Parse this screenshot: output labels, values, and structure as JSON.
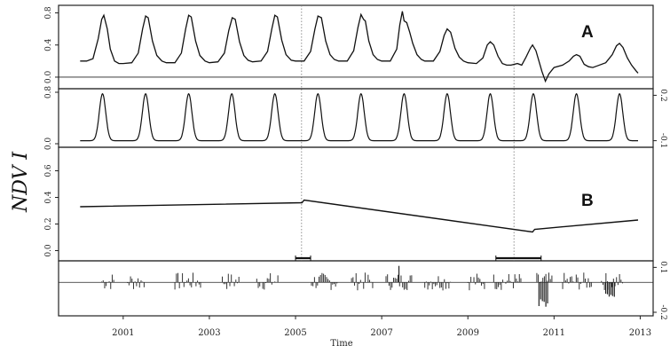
{
  "chart_data": {
    "type": "line",
    "ylabel": "NDV I",
    "xlabel": "Time",
    "x_tick_labels": [
      "2001",
      "2003",
      "2005",
      "2007",
      "2009",
      "2011",
      "2013"
    ],
    "x_tick_years": [
      2001,
      2003,
      2005,
      2007,
      2009,
      2011,
      2013
    ],
    "xlim": [
      1999.5,
      2013.3
    ],
    "panels": [
      {
        "label": "A",
        "kind": "observed",
        "ylim": [
          -0.1,
          0.85
        ],
        "y_ticks": [
          "0.0",
          "0.4",
          "0.8"
        ],
        "y_tick_values": [
          0.0,
          0.4,
          0.8
        ],
        "tick_side": "left",
        "points": [
          [
            2000.0,
            0.2
          ],
          [
            2000.15,
            0.2
          ],
          [
            2000.3,
            0.23
          ],
          [
            2000.42,
            0.48
          ],
          [
            2000.5,
            0.72
          ],
          [
            2000.55,
            0.77
          ],
          [
            2000.63,
            0.6
          ],
          [
            2000.7,
            0.35
          ],
          [
            2000.8,
            0.2
          ],
          [
            2000.9,
            0.17
          ],
          [
            2001.0,
            0.17
          ],
          [
            2001.2,
            0.18
          ],
          [
            2001.35,
            0.3
          ],
          [
            2001.45,
            0.6
          ],
          [
            2001.52,
            0.76
          ],
          [
            2001.58,
            0.74
          ],
          [
            2001.68,
            0.45
          ],
          [
            2001.78,
            0.27
          ],
          [
            2001.9,
            0.2
          ],
          [
            2002.0,
            0.18
          ],
          [
            2002.2,
            0.18
          ],
          [
            2002.35,
            0.3
          ],
          [
            2002.45,
            0.6
          ],
          [
            2002.52,
            0.77
          ],
          [
            2002.58,
            0.75
          ],
          [
            2002.68,
            0.45
          ],
          [
            2002.78,
            0.27
          ],
          [
            2002.9,
            0.2
          ],
          [
            2003.0,
            0.18
          ],
          [
            2003.2,
            0.19
          ],
          [
            2003.35,
            0.3
          ],
          [
            2003.45,
            0.58
          ],
          [
            2003.53,
            0.74
          ],
          [
            2003.6,
            0.72
          ],
          [
            2003.7,
            0.44
          ],
          [
            2003.8,
            0.27
          ],
          [
            2003.9,
            0.21
          ],
          [
            2004.0,
            0.19
          ],
          [
            2004.2,
            0.2
          ],
          [
            2004.35,
            0.32
          ],
          [
            2004.45,
            0.6
          ],
          [
            2004.52,
            0.77
          ],
          [
            2004.58,
            0.75
          ],
          [
            2004.68,
            0.46
          ],
          [
            2004.78,
            0.28
          ],
          [
            2004.9,
            0.21
          ],
          [
            2005.0,
            0.2
          ],
          [
            2005.2,
            0.2
          ],
          [
            2005.35,
            0.32
          ],
          [
            2005.45,
            0.6
          ],
          [
            2005.52,
            0.76
          ],
          [
            2005.6,
            0.74
          ],
          [
            2005.7,
            0.45
          ],
          [
            2005.8,
            0.28
          ],
          [
            2005.9,
            0.22
          ],
          [
            2006.0,
            0.2
          ],
          [
            2006.2,
            0.2
          ],
          [
            2006.35,
            0.33
          ],
          [
            2006.45,
            0.62
          ],
          [
            2006.52,
            0.78
          ],
          [
            2006.58,
            0.72
          ],
          [
            2006.62,
            0.7
          ],
          [
            2006.7,
            0.45
          ],
          [
            2006.8,
            0.28
          ],
          [
            2006.9,
            0.22
          ],
          [
            2007.0,
            0.2
          ],
          [
            2007.2,
            0.2
          ],
          [
            2007.35,
            0.35
          ],
          [
            2007.42,
            0.65
          ],
          [
            2007.48,
            0.82
          ],
          [
            2007.52,
            0.7
          ],
          [
            2007.58,
            0.68
          ],
          [
            2007.65,
            0.56
          ],
          [
            2007.72,
            0.42
          ],
          [
            2007.82,
            0.28
          ],
          [
            2007.92,
            0.22
          ],
          [
            2008.0,
            0.2
          ],
          [
            2008.2,
            0.2
          ],
          [
            2008.35,
            0.32
          ],
          [
            2008.45,
            0.52
          ],
          [
            2008.52,
            0.6
          ],
          [
            2008.6,
            0.56
          ],
          [
            2008.7,
            0.36
          ],
          [
            2008.8,
            0.25
          ],
          [
            2008.9,
            0.2
          ],
          [
            2009.0,
            0.18
          ],
          [
            2009.2,
            0.17
          ],
          [
            2009.35,
            0.24
          ],
          [
            2009.45,
            0.4
          ],
          [
            2009.52,
            0.44
          ],
          [
            2009.6,
            0.4
          ],
          [
            2009.7,
            0.26
          ],
          [
            2009.8,
            0.17
          ],
          [
            2009.9,
            0.15
          ],
          [
            2010.0,
            0.15
          ],
          [
            2010.15,
            0.17
          ],
          [
            2010.25,
            0.15
          ],
          [
            2010.35,
            0.25
          ],
          [
            2010.45,
            0.36
          ],
          [
            2010.5,
            0.4
          ],
          [
            2010.58,
            0.33
          ],
          [
            2010.65,
            0.2
          ],
          [
            2010.72,
            0.07
          ],
          [
            2010.8,
            -0.05
          ],
          [
            2010.88,
            0.04
          ],
          [
            2011.0,
            0.12
          ],
          [
            2011.2,
            0.15
          ],
          [
            2011.35,
            0.2
          ],
          [
            2011.45,
            0.26
          ],
          [
            2011.52,
            0.28
          ],
          [
            2011.6,
            0.26
          ],
          [
            2011.7,
            0.16
          ],
          [
            2011.8,
            0.13
          ],
          [
            2011.9,
            0.12
          ],
          [
            2012.0,
            0.14
          ],
          [
            2012.2,
            0.18
          ],
          [
            2012.35,
            0.28
          ],
          [
            2012.45,
            0.39
          ],
          [
            2012.52,
            0.42
          ],
          [
            2012.6,
            0.37
          ],
          [
            2012.7,
            0.24
          ],
          [
            2012.8,
            0.15
          ],
          [
            2012.9,
            0.08
          ],
          [
            2012.95,
            0.05
          ]
        ]
      },
      {
        "label": "",
        "kind": "seasonal",
        "ylim": [
          -0.12,
          0.22
        ],
        "y_ticks": [
          "0.2",
          "-0.1"
        ],
        "y_tick_values": [
          0.2,
          -0.1
        ],
        "tick_side": "right",
        "left_ticks": [
          "0.0",
          "0.8"
        ],
        "left_tick_values": [
          -0.12,
          0.22
        ],
        "amplitude_peak": 0.21,
        "amplitude_trough": -0.1,
        "peak_phase": 0.52,
        "start": 2000.0,
        "end": 2012.95
      },
      {
        "label": "B",
        "kind": "trend",
        "ylim": [
          -0.05,
          0.75
        ],
        "y_ticks": [
          "0.0",
          "0.2",
          "0.4",
          "0.6"
        ],
        "y_tick_values": [
          0.0,
          0.2,
          0.4,
          0.6
        ],
        "tick_side": "left",
        "breakpoints": [
          2005.15,
          2010.5
        ],
        "points": [
          [
            2000.0,
            0.33
          ],
          [
            2005.15,
            0.36
          ],
          [
            2005.2,
            0.38
          ],
          [
            2010.5,
            0.14
          ],
          [
            2010.55,
            0.16
          ],
          [
            2012.95,
            0.23
          ]
        ]
      },
      {
        "label": "",
        "kind": "remainder",
        "ylim": [
          -0.2,
          0.12
        ],
        "y_ticks": [
          "0.1",
          "-0.2"
        ],
        "y_tick_values": [
          0.1,
          -0.2
        ],
        "tick_side": "right",
        "bar_spans": [
          [
            2000.5,
            2000.8
          ],
          [
            2001.1,
            2001.5
          ],
          [
            2002.2,
            2002.8
          ],
          [
            2003.3,
            2003.7
          ],
          [
            2004.1,
            2004.6
          ],
          [
            2005.3,
            2006.0
          ],
          [
            2006.3,
            2006.8
          ],
          [
            2007.1,
            2007.7
          ],
          [
            2008.0,
            2008.6
          ],
          [
            2009.0,
            2009.4
          ],
          [
            2009.6,
            2010.3
          ],
          [
            2010.6,
            2011.0
          ],
          [
            2011.2,
            2011.9
          ],
          [
            2012.1,
            2012.6
          ]
        ],
        "bar_amplitude": 0.06,
        "spike": [
          2007.4,
          0.11
        ],
        "dip_spans": [
          [
            2010.65,
            2010.85,
            -0.17
          ],
          [
            2012.2,
            2012.4,
            -0.12
          ]
        ]
      }
    ],
    "break_intervals": [
      [
        2005.0,
        2005.35
      ],
      [
        2009.65,
        2010.7
      ]
    ]
  }
}
